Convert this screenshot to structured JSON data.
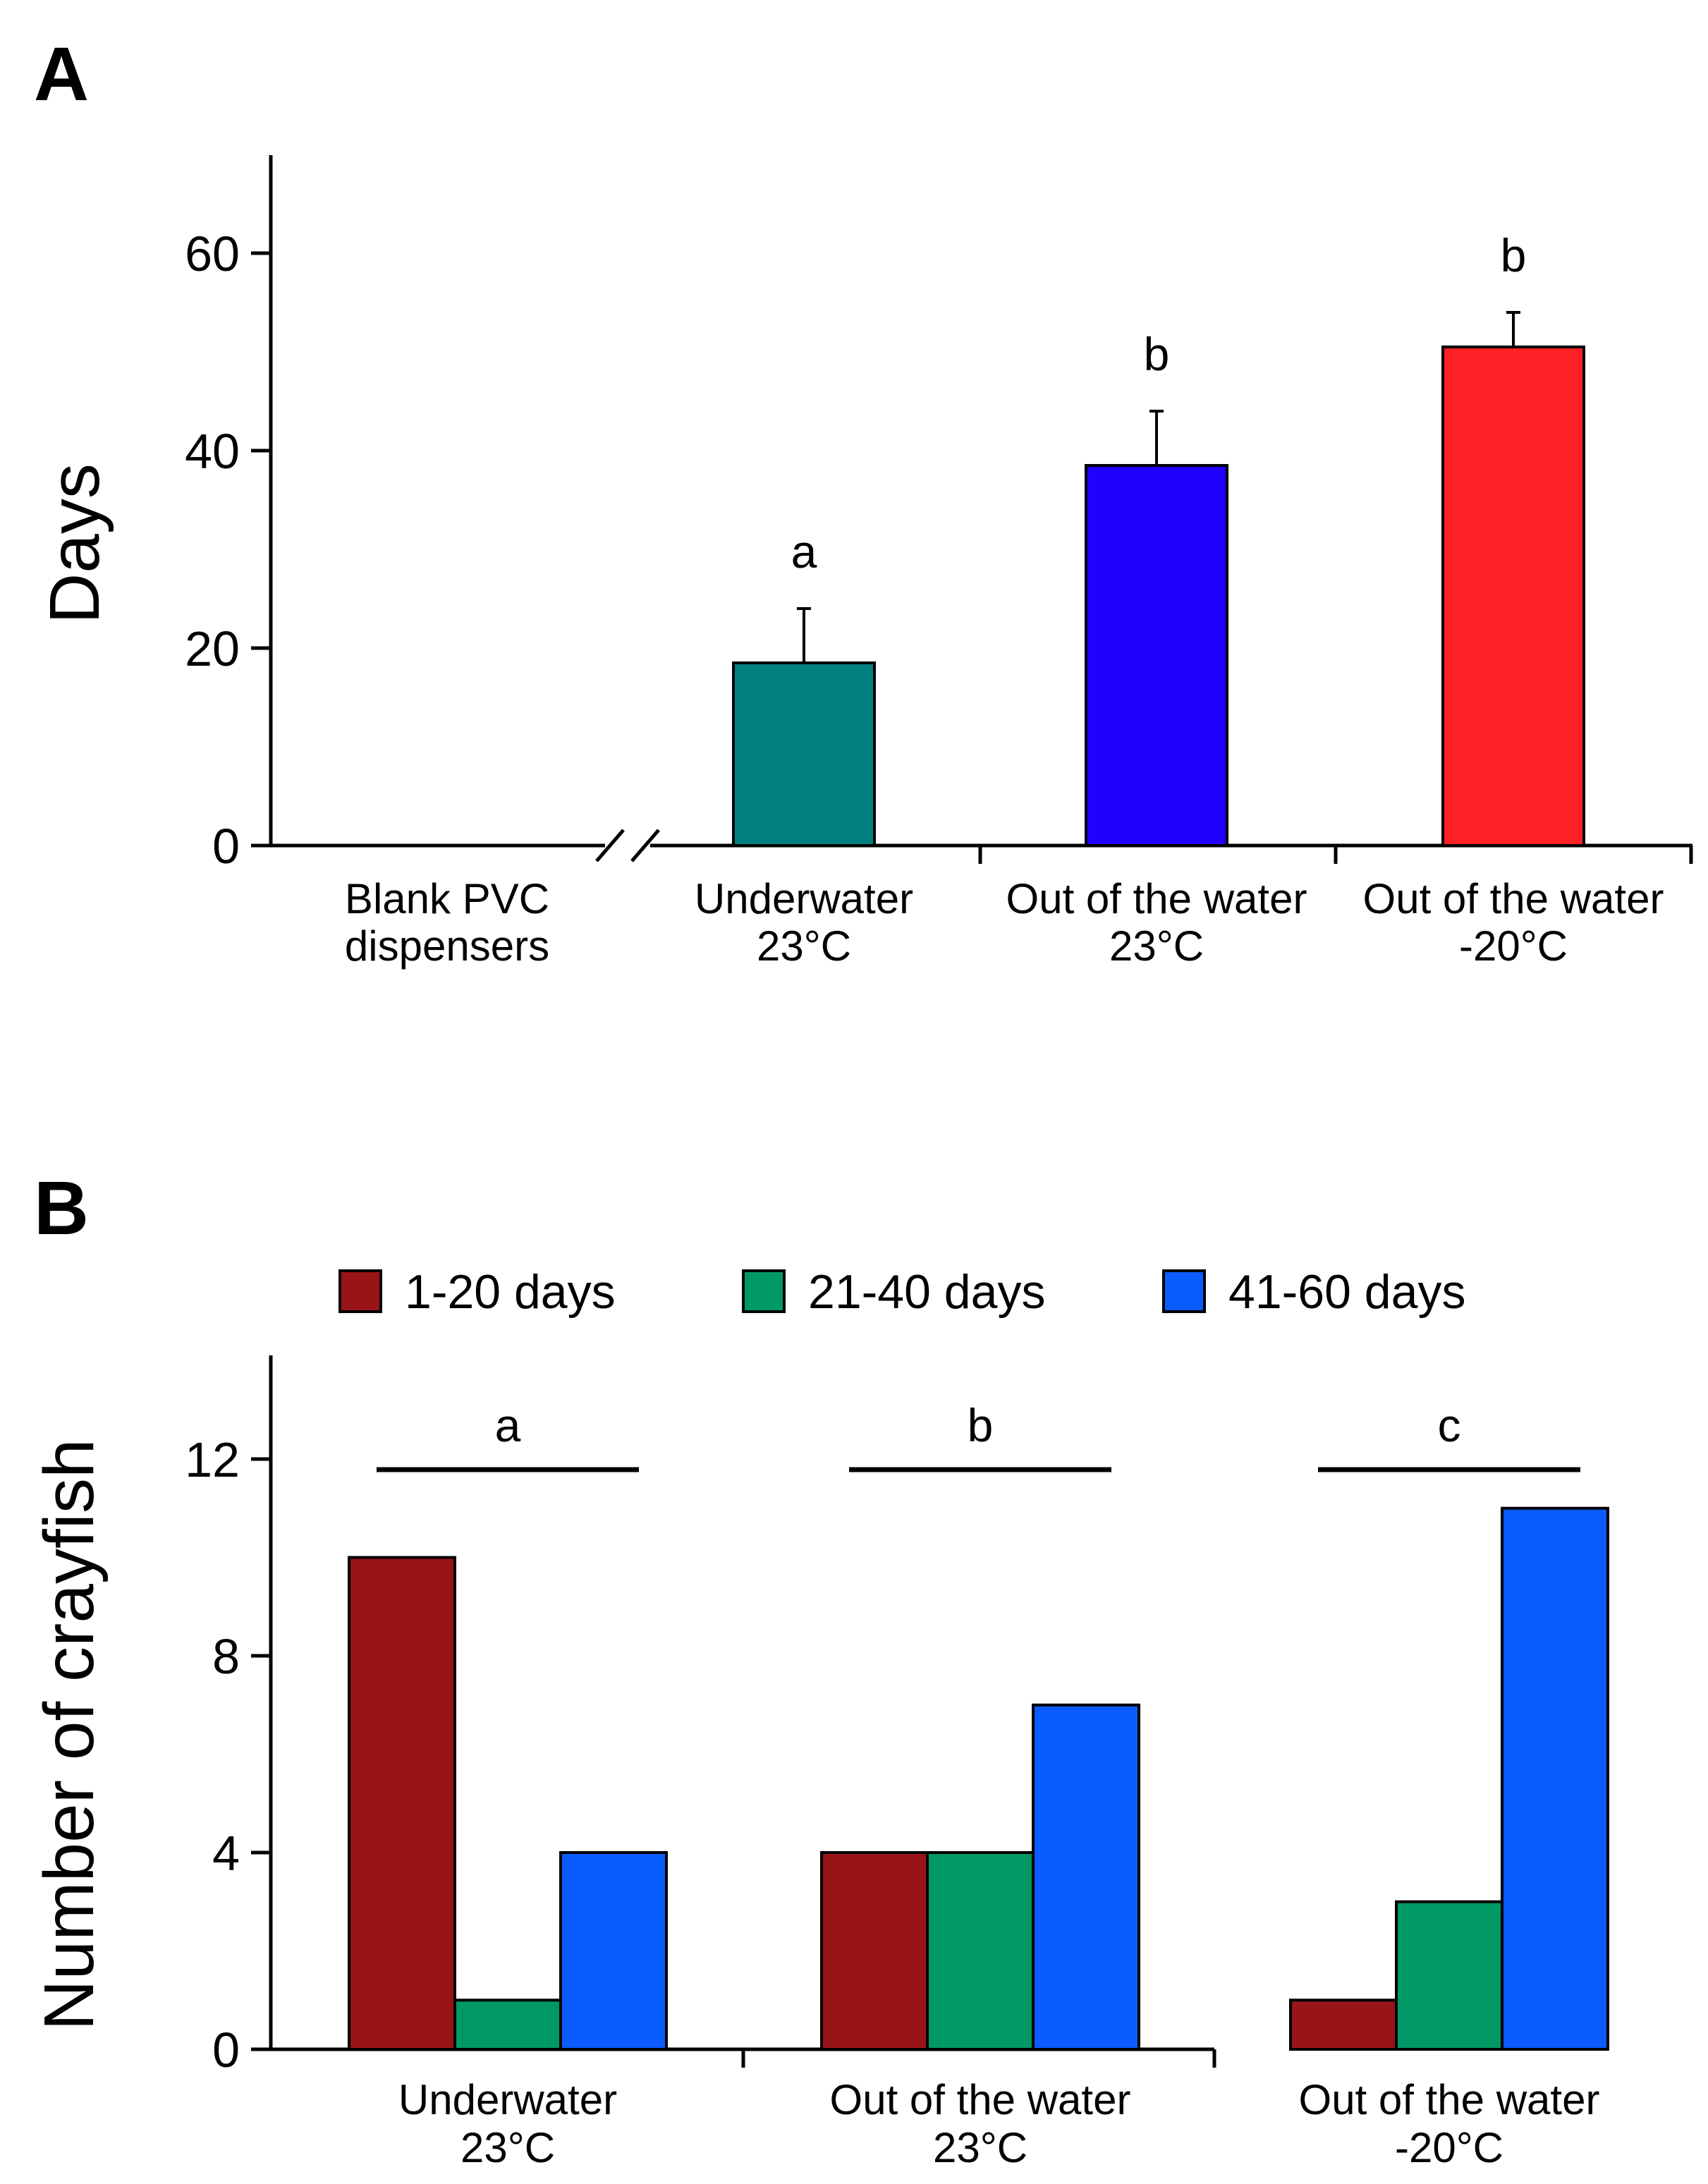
{
  "chart_data": [
    {
      "panel": "A",
      "type": "bar",
      "ylabel": "Days",
      "xlabel": "",
      "ylim": [
        0,
        70
      ],
      "yticks": [
        0,
        20,
        40,
        60
      ],
      "grid": false,
      "axis_break": true,
      "categories": [
        [
          "Blank PVC",
          "dispensers"
        ],
        [
          "Underwater",
          "23°C"
        ],
        [
          "Out of the water",
          "23°C"
        ],
        [
          "Out of the water",
          "-20°C"
        ]
      ],
      "values": [
        null,
        18.5,
        38.5,
        50.5
      ],
      "errors": [
        null,
        5.5,
        5.5,
        3.5
      ],
      "significance_letters": [
        "",
        "a",
        "b",
        "b"
      ],
      "colors": [
        "#ffffff",
        "#008080",
        "#2200ff",
        "#ff2026"
      ]
    },
    {
      "panel": "B",
      "type": "bar",
      "ylabel": "Number of crayfish",
      "xlabel": "",
      "ylim": [
        0,
        14
      ],
      "yticks": [
        0,
        4,
        8,
        12
      ],
      "grid": false,
      "legend_position": "top",
      "categories": [
        [
          "Underwater",
          "23°C"
        ],
        [
          "Out of the water",
          "23°C"
        ],
        [
          "Out of the water",
          "-20°C"
        ]
      ],
      "series": [
        {
          "name": "1-20 days",
          "color": "#991417",
          "values": [
            10,
            4,
            1
          ]
        },
        {
          "name": "21-40 days",
          "color": "#009966",
          "values": [
            1,
            4,
            3
          ]
        },
        {
          "name": "41-60 days",
          "color": "#0a5cff",
          "values": [
            4,
            7,
            11
          ]
        }
      ],
      "significance_letters": [
        "a",
        "b",
        "c"
      ]
    }
  ]
}
